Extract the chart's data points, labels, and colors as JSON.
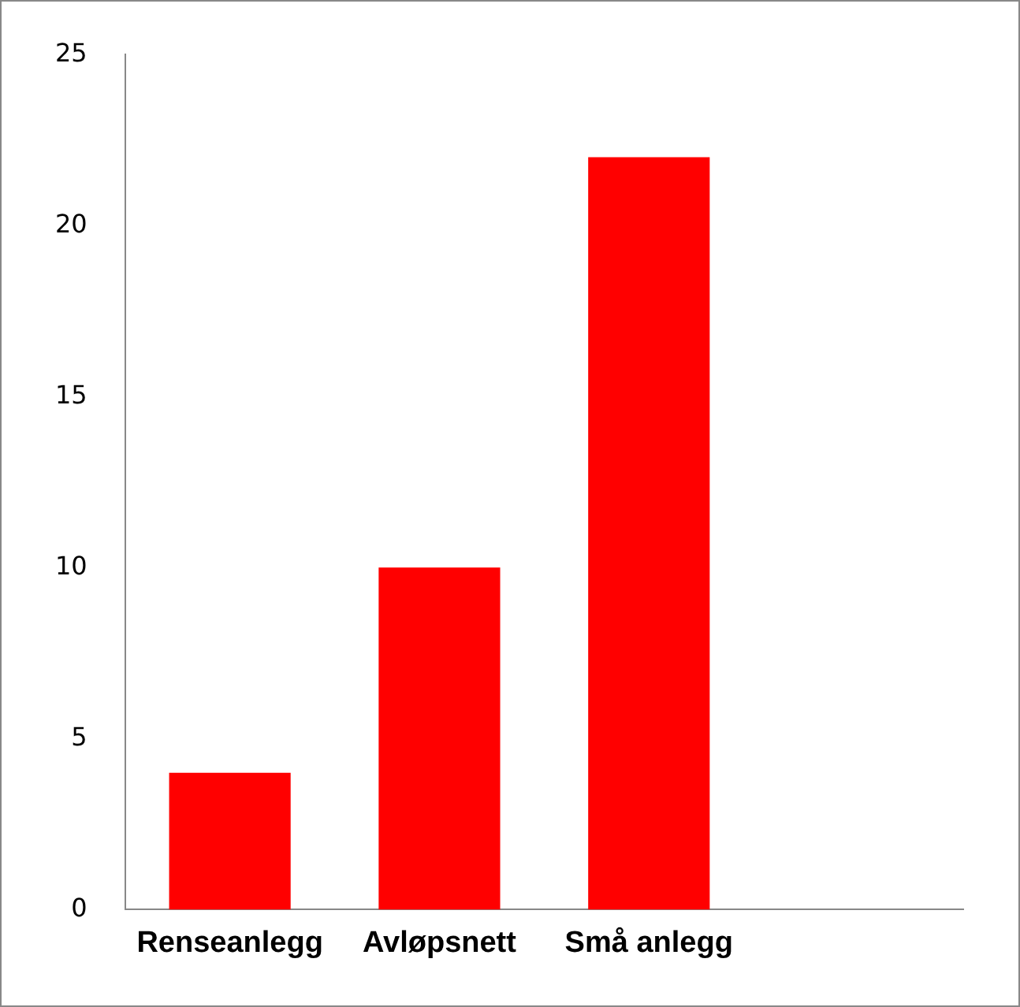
{
  "chart_data": {
    "type": "bar",
    "categories": [
      "Renseanlegg",
      "Avløpsnett",
      "Små anlegg",
      null
    ],
    "values": [
      4,
      10,
      22,
      null
    ],
    "color": "#ff0000",
    "ylim": [
      0,
      25
    ],
    "yticks": [
      0,
      5,
      10,
      15,
      20,
      25
    ],
    "grid": false,
    "legend": false
  }
}
